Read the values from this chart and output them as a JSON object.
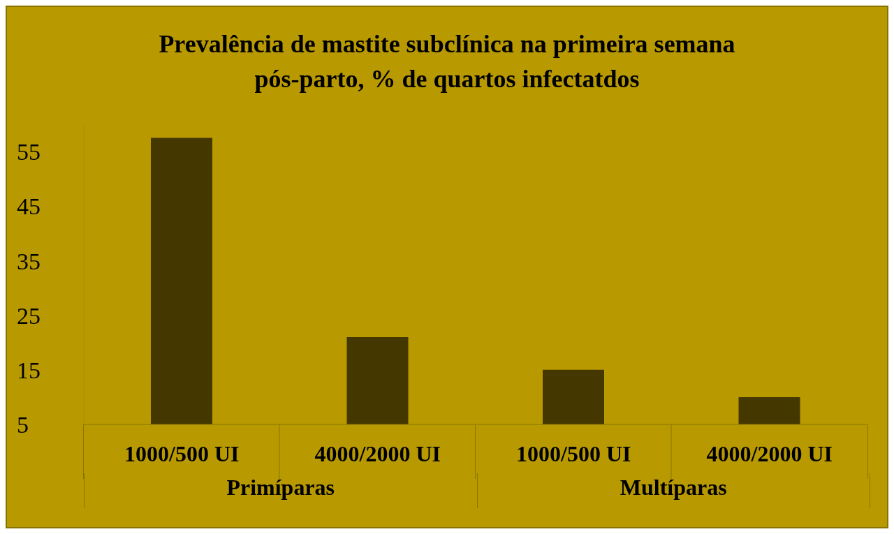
{
  "chart_data": {
    "type": "bar",
    "title": "Prevalência de mastite subclínica na primeira semana pós-parto, % de quartos infectatdos",
    "categories": [
      "1000/500 UI",
      "4000/2000 UI",
      "1000/500 UI",
      "4000/2000 UI"
    ],
    "values": [
      57.5,
      21,
      15,
      10
    ],
    "color": "#453700",
    "ylim": [
      5,
      60
    ],
    "yticks": [
      5,
      15,
      25,
      35,
      45,
      55
    ],
    "annotations": [
      "Primíparas",
      "Multíparas"
    ]
  }
}
